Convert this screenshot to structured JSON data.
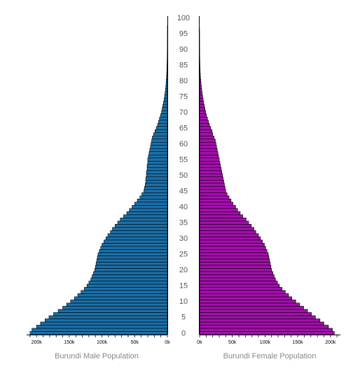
{
  "chart_data": [
    {
      "type": "bar",
      "orientation": "horizontal",
      "xlabel": "Burundi Male Population",
      "xlim": [
        0,
        210000
      ],
      "x_ticks": [
        0,
        50000,
        100000,
        150000,
        200000
      ],
      "x_tick_labels": [
        "0k",
        "50k",
        "100k",
        "150k",
        "200k"
      ],
      "ylim": [
        0,
        100
      ],
      "y_ticks": [
        0,
        5,
        10,
        15,
        20,
        25,
        30,
        35,
        40,
        45,
        50,
        55,
        60,
        65,
        70,
        75,
        80,
        85,
        90,
        95,
        100
      ],
      "categories": [
        0,
        1,
        2,
        3,
        4,
        5,
        6,
        7,
        8,
        9,
        10,
        11,
        12,
        13,
        14,
        15,
        16,
        17,
        18,
        19,
        20,
        21,
        22,
        23,
        24,
        25,
        26,
        27,
        28,
        29,
        30,
        31,
        32,
        33,
        34,
        35,
        36,
        37,
        38,
        39,
        40,
        41,
        42,
        43,
        44,
        45,
        46,
        47,
        48,
        49,
        50,
        51,
        52,
        53,
        54,
        55,
        56,
        57,
        58,
        59,
        60,
        61,
        62,
        63,
        64,
        65,
        66,
        67,
        68,
        69,
        70,
        71,
        72,
        73,
        74,
        75,
        76,
        77,
        78,
        79,
        80,
        81,
        82,
        83,
        84,
        85,
        86,
        87,
        88,
        89,
        90,
        91,
        92,
        93,
        94,
        95,
        96,
        97,
        98,
        99,
        100
      ],
      "values": [
        210000,
        207000,
        200000,
        194000,
        187000,
        181000,
        174000,
        167000,
        160000,
        154000,
        148000,
        142000,
        137000,
        132000,
        127000,
        123000,
        120000,
        117000,
        115000,
        113000,
        111000,
        110000,
        109000,
        108000,
        107000,
        106000,
        104000,
        102000,
        100000,
        97000,
        94000,
        91000,
        87000,
        84000,
        80000,
        76000,
        72000,
        67000,
        62000,
        58000,
        54000,
        50000,
        46000,
        42000,
        39000,
        36000,
        35000,
        34000,
        33000,
        33000,
        32000,
        32000,
        31000,
        31000,
        30000,
        30000,
        29000,
        28000,
        27000,
        26000,
        25000,
        24000,
        23000,
        21000,
        19000,
        17000,
        15000,
        13500,
        12000,
        10500,
        9000,
        8000,
        7000,
        6000,
        5000,
        4300,
        3600,
        3000,
        2500,
        2000,
        1700,
        1400,
        1100,
        900,
        700,
        550,
        420,
        320,
        240,
        180,
        130,
        90,
        60,
        40,
        25,
        15,
        10,
        6,
        4,
        2,
        1
      ],
      "color": "#1a6fa8"
    },
    {
      "type": "bar",
      "orientation": "horizontal",
      "xlabel": "Burundi Female Population",
      "xlim": [
        0,
        210000
      ],
      "x_ticks": [
        0,
        50000,
        100000,
        150000,
        200000
      ],
      "x_tick_labels": [
        "0k",
        "50k",
        "100k",
        "150k",
        "200k"
      ],
      "ylim": [
        0,
        100
      ],
      "y_ticks": [
        0,
        5,
        10,
        15,
        20,
        25,
        30,
        35,
        40,
        45,
        50,
        55,
        60,
        65,
        70,
        75,
        80,
        85,
        90,
        95,
        100
      ],
      "categories": [
        0,
        1,
        2,
        3,
        4,
        5,
        6,
        7,
        8,
        9,
        10,
        11,
        12,
        13,
        14,
        15,
        16,
        17,
        18,
        19,
        20,
        21,
        22,
        23,
        24,
        25,
        26,
        27,
        28,
        29,
        30,
        31,
        32,
        33,
        34,
        35,
        36,
        37,
        38,
        39,
        40,
        41,
        42,
        43,
        44,
        45,
        46,
        47,
        48,
        49,
        50,
        51,
        52,
        53,
        54,
        55,
        56,
        57,
        58,
        59,
        60,
        61,
        62,
        63,
        64,
        65,
        66,
        67,
        68,
        69,
        70,
        71,
        72,
        73,
        74,
        75,
        76,
        77,
        78,
        79,
        80,
        81,
        82,
        83,
        84,
        85,
        86,
        87,
        88,
        89,
        90,
        91,
        92,
        93,
        94,
        95,
        96,
        97,
        98,
        99,
        100
      ],
      "values": [
        206000,
        203000,
        197000,
        190000,
        184000,
        177000,
        171000,
        165000,
        159000,
        153000,
        147000,
        141000,
        136000,
        131000,
        126000,
        122000,
        119000,
        116000,
        114000,
        112000,
        110000,
        109000,
        108000,
        107000,
        106000,
        105000,
        103000,
        101000,
        99000,
        96000,
        93000,
        90000,
        86000,
        83000,
        79000,
        75000,
        71000,
        66000,
        62000,
        58000,
        55000,
        51000,
        48000,
        45000,
        42000,
        40000,
        39000,
        38000,
        37000,
        36000,
        35000,
        34000,
        33000,
        32000,
        31000,
        30000,
        29000,
        28000,
        27000,
        26000,
        25000,
        24000,
        22000,
        20000,
        19000,
        17000,
        15000,
        13500,
        12000,
        10500,
        9200,
        8200,
        7200,
        6300,
        5400,
        4600,
        3900,
        3300,
        2700,
        2200,
        1800,
        1400,
        1100,
        850,
        650,
        500,
        380,
        280,
        200,
        140,
        100,
        70,
        45,
        28,
        18,
        11,
        7,
        4,
        3,
        2,
        1
      ],
      "color": "#a30fac"
    }
  ],
  "text_color": "#888888",
  "bar_outline": "#000000"
}
